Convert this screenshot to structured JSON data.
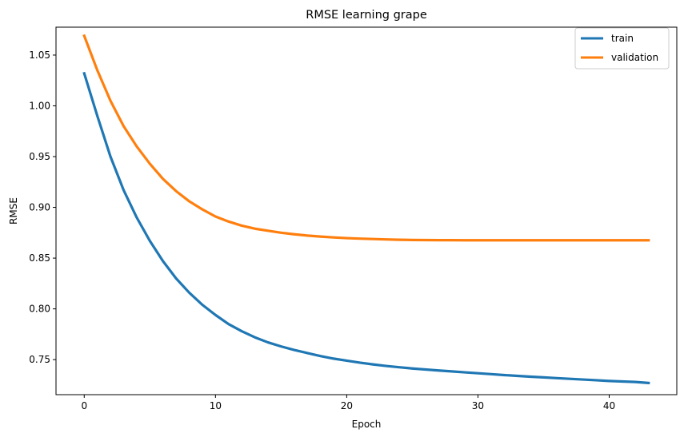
{
  "chart_data": {
    "type": "line",
    "title": "RMSE learning grape",
    "xlabel": "Epoch",
    "ylabel": "RMSE",
    "xlim": [
      -2.15,
      45.15
    ],
    "ylim": [
      0.7155,
      1.0775
    ],
    "xticks": [
      0,
      10,
      20,
      30,
      40
    ],
    "xtick_labels": [
      "0",
      "10",
      "20",
      "30",
      "40"
    ],
    "yticks": [
      0.75,
      0.8,
      0.85,
      0.9,
      0.95,
      1.0,
      1.05
    ],
    "ytick_labels": [
      "0.75",
      "0.80",
      "0.85",
      "0.90",
      "0.95",
      "1.00",
      "1.05"
    ],
    "grid": false,
    "legend_position": "top-right",
    "x": [
      0,
      1,
      2,
      3,
      4,
      5,
      6,
      7,
      8,
      9,
      10,
      11,
      12,
      13,
      14,
      15,
      16,
      17,
      18,
      19,
      20,
      21,
      22,
      23,
      24,
      25,
      26,
      27,
      28,
      29,
      30,
      31,
      32,
      33,
      34,
      35,
      36,
      37,
      38,
      39,
      40,
      41,
      42,
      43
    ],
    "series": [
      {
        "name": "train",
        "color": "#1f77b4",
        "values": [
          1.032,
          0.99,
          0.95,
          0.917,
          0.89,
          0.867,
          0.847,
          0.83,
          0.816,
          0.804,
          0.794,
          0.785,
          0.778,
          0.772,
          0.767,
          0.763,
          0.7595,
          0.7565,
          0.7535,
          0.751,
          0.749,
          0.747,
          0.7453,
          0.7438,
          0.7425,
          0.7413,
          0.7403,
          0.7393,
          0.7384,
          0.7375,
          0.7366,
          0.7357,
          0.7348,
          0.734,
          0.7332,
          0.7325,
          0.7318,
          0.7311,
          0.7304,
          0.7297,
          0.729,
          0.7285,
          0.728,
          0.727
        ]
      },
      {
        "name": "validation",
        "color": "#ff7f0e",
        "values": [
          1.069,
          1.035,
          1.005,
          0.98,
          0.96,
          0.943,
          0.928,
          0.916,
          0.906,
          0.898,
          0.891,
          0.886,
          0.882,
          0.879,
          0.877,
          0.875,
          0.8735,
          0.8722,
          0.8712,
          0.8704,
          0.8697,
          0.8692,
          0.8688,
          0.8684,
          0.8681,
          0.8679,
          0.8678,
          0.8677,
          0.8677,
          0.8676,
          0.8676,
          0.8676,
          0.8676,
          0.8676,
          0.8676,
          0.8676,
          0.8676,
          0.8676,
          0.8676,
          0.8676,
          0.8676,
          0.8676,
          0.8676,
          0.8676
        ]
      }
    ]
  }
}
